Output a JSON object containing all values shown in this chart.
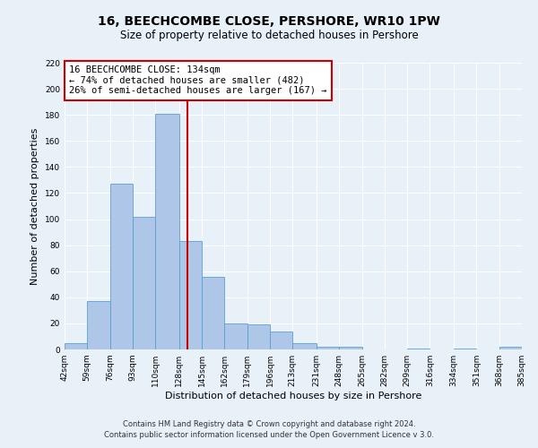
{
  "title": "16, BEECHCOMBE CLOSE, PERSHORE, WR10 1PW",
  "subtitle": "Size of property relative to detached houses in Pershore",
  "xlabel": "Distribution of detached houses by size in Pershore",
  "ylabel": "Number of detached properties",
  "bin_edges": [
    42,
    59,
    76,
    93,
    110,
    128,
    145,
    162,
    179,
    196,
    213,
    231,
    248,
    265,
    282,
    299,
    316,
    334,
    351,
    368,
    385
  ],
  "bar_heights": [
    5,
    37,
    127,
    102,
    181,
    83,
    56,
    20,
    19,
    14,
    5,
    2,
    2,
    0,
    0,
    1,
    0,
    1,
    0,
    2
  ],
  "bar_color": "#aec6e8",
  "bar_edgecolor": "#5a9fd4",
  "property_line_x": 134,
  "property_line_color": "#cc0000",
  "ylim": [
    0,
    220
  ],
  "yticks": [
    0,
    20,
    40,
    60,
    80,
    100,
    120,
    140,
    160,
    180,
    200,
    220
  ],
  "tick_labels": [
    "42sqm",
    "59sqm",
    "76sqm",
    "93sqm",
    "110sqm",
    "128sqm",
    "145sqm",
    "162sqm",
    "179sqm",
    "196sqm",
    "213sqm",
    "231sqm",
    "248sqm",
    "265sqm",
    "282sqm",
    "299sqm",
    "316sqm",
    "334sqm",
    "351sqm",
    "368sqm",
    "385sqm"
  ],
  "annotation_text": "16 BEECHCOMBE CLOSE: 134sqm\n← 74% of detached houses are smaller (482)\n26% of semi-detached houses are larger (167) →",
  "annotation_box_color": "#ffffff",
  "annotation_box_edgecolor": "#cc0000",
  "footnote1": "Contains HM Land Registry data © Crown copyright and database right 2024.",
  "footnote2": "Contains public sector information licensed under the Open Government Licence v 3.0.",
  "background_color": "#e8f0f8",
  "plot_background": "#e8f0f8",
  "grid_color": "#ffffff",
  "title_fontsize": 10,
  "subtitle_fontsize": 8.5,
  "axis_label_fontsize": 8,
  "tick_fontsize": 6.5,
  "annotation_fontsize": 7.5,
  "footnote_fontsize": 6
}
